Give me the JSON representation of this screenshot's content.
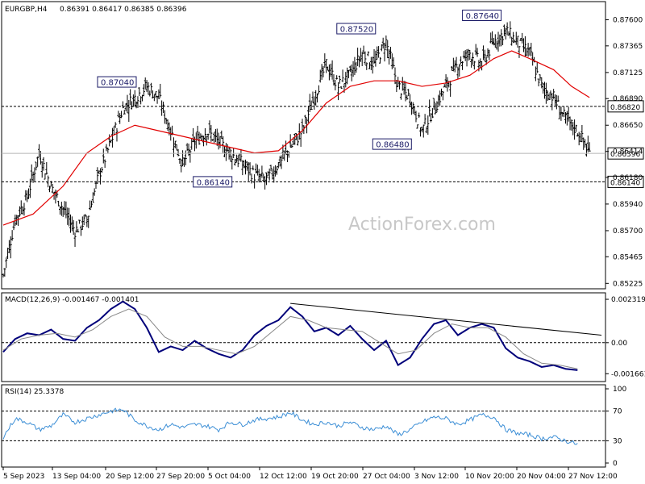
{
  "header": {
    "title": "EURGBP,H4",
    "ohlc": "0.86391 0.86417 0.86385 0.86396"
  },
  "watermark": "ActionForex.com",
  "chart_data": [
    {
      "type": "line",
      "title": "EURGBP,H4",
      "series": [
        {
          "kind": "ohlc-bars",
          "color": "#000000",
          "x_time": [
            "5 Sep 2023",
            "13 Sep 04:00",
            "20 Sep 12:00",
            "27 Sep 20:00",
            "5 Oct 04:00",
            "12 Oct 12:00",
            "19 Oct 20:00",
            "27 Oct 04:00",
            "3 Nov 12:00",
            "10 Nov 20:00",
            "20 Nov 04:00",
            "27 Nov 12:00"
          ],
          "close_path": [
            [
              0,
              0.853
            ],
            [
              4,
              0.858
            ],
            [
              8,
              0.86
            ],
            [
              12,
              0.864
            ],
            [
              16,
              0.861
            ],
            [
              20,
              0.859
            ],
            [
              24,
              0.857
            ],
            [
              28,
              0.858
            ],
            [
              32,
              0.862
            ],
            [
              36,
              0.865
            ],
            [
              40,
              0.868
            ],
            [
              44,
              0.869
            ],
            [
              48,
              0.87
            ],
            [
              52,
              0.869
            ],
            [
              56,
              0.866
            ],
            [
              60,
              0.863
            ],
            [
              64,
              0.865
            ],
            [
              68,
              0.866
            ],
            [
              72,
              0.865
            ],
            [
              76,
              0.864
            ],
            [
              80,
              0.863
            ],
            [
              84,
              0.862
            ],
            [
              88,
              0.8615
            ],
            [
              92,
              0.863
            ],
            [
              96,
              0.8645
            ],
            [
              100,
              0.866
            ],
            [
              104,
              0.869
            ],
            [
              108,
              0.872
            ],
            [
              112,
              0.87
            ],
            [
              116,
              0.871
            ],
            [
              120,
              0.873
            ],
            [
              124,
              0.872
            ],
            [
              128,
              0.874
            ],
            [
              132,
              0.87
            ],
            [
              136,
              0.869
            ],
            [
              140,
              0.866
            ],
            [
              144,
              0.868
            ],
            [
              148,
              0.87
            ],
            [
              152,
              0.872
            ],
            [
              156,
              0.873
            ],
            [
              160,
              0.872
            ],
            [
              164,
              0.874
            ],
            [
              168,
              0.875
            ],
            [
              172,
              0.874
            ],
            [
              176,
              0.873
            ],
            [
              180,
              0.87
            ],
            [
              184,
              0.869
            ],
            [
              188,
              0.867
            ],
            [
              192,
              0.866
            ],
            [
              196,
              0.864
            ]
          ]
        },
        {
          "name": "SMA",
          "color": "#e10000",
          "path": [
            [
              0,
              0.8575
            ],
            [
              10,
              0.8585
            ],
            [
              20,
              0.861
            ],
            [
              28,
              0.864
            ],
            [
              36,
              0.8655
            ],
            [
              44,
              0.8665
            ],
            [
              52,
              0.866
            ],
            [
              60,
              0.8655
            ],
            [
              68,
              0.865
            ],
            [
              76,
              0.8645
            ],
            [
              84,
              0.864
            ],
            [
              92,
              0.8642
            ],
            [
              100,
              0.866
            ],
            [
              108,
              0.8685
            ],
            [
              116,
              0.87
            ],
            [
              124,
              0.8705
            ],
            [
              132,
              0.8705
            ],
            [
              140,
              0.87
            ],
            [
              148,
              0.8703
            ],
            [
              156,
              0.871
            ],
            [
              164,
              0.8725
            ],
            [
              170,
              0.8732
            ],
            [
              176,
              0.8725
            ],
            [
              184,
              0.8715
            ],
            [
              190,
              0.87
            ],
            [
              196,
              0.869
            ]
          ]
        }
      ],
      "ylim": [
        0.8522,
        0.8772
      ],
      "y_ticks": [
        "0.87600",
        "0.87365",
        "0.87125",
        "0.86890",
        "0.86650",
        "0.86414",
        "0.86180",
        "0.85940",
        "0.85700",
        "0.85465",
        "0.85225"
      ],
      "levels": [
        {
          "value": 0.8682,
          "label": "0.86820",
          "style": "dashed"
        },
        {
          "value": 0.86396,
          "label": "0.86396",
          "style": "solid-grey"
        },
        {
          "value": 0.8614,
          "label": "0.86140",
          "style": "dashed"
        }
      ],
      "annotations": [
        {
          "label": "0.87040",
          "x": 38,
          "y": 0.8704
        },
        {
          "label": "0.87520",
          "x": 118,
          "y": 0.8752
        },
        {
          "label": "0.87640",
          "x": 160,
          "y": 0.8764
        },
        {
          "label": "0.86480",
          "x": 130,
          "y": 0.8648
        },
        {
          "label": "0.86140",
          "x": 70,
          "y": 0.8614
        }
      ]
    },
    {
      "type": "line",
      "title": "MACD(12,26,9) -0.001467 -0.001401",
      "series": [
        {
          "name": "MACD main",
          "color": "#00007a",
          "path": [
            [
              0,
              -0.0005
            ],
            [
              4,
              0.0002
            ],
            [
              8,
              0.0005
            ],
            [
              12,
              0.0004
            ],
            [
              16,
              0.0007
            ],
            [
              20,
              0.0002
            ],
            [
              24,
              0.0001
            ],
            [
              28,
              0.0008
            ],
            [
              32,
              0.0012
            ],
            [
              36,
              0.0018
            ],
            [
              40,
              0.0022
            ],
            [
              44,
              0.0018
            ],
            [
              48,
              0.0008
            ],
            [
              52,
              -0.0005
            ],
            [
              56,
              -0.0002
            ],
            [
              60,
              -0.0004
            ],
            [
              64,
              0.0001
            ],
            [
              68,
              -0.0003
            ],
            [
              72,
              -0.0006
            ],
            [
              76,
              -0.0008
            ],
            [
              80,
              -0.0004
            ],
            [
              84,
              0.0004
            ],
            [
              88,
              0.0009
            ],
            [
              92,
              0.0012
            ],
            [
              96,
              0.0019
            ],
            [
              100,
              0.0014
            ],
            [
              104,
              0.0006
            ],
            [
              108,
              0.0008
            ],
            [
              112,
              0.0004
            ],
            [
              116,
              0.0009
            ],
            [
              120,
              0.0002
            ],
            [
              124,
              -0.0004
            ],
            [
              128,
              0.0001
            ],
            [
              132,
              -0.0012
            ],
            [
              136,
              -0.0008
            ],
            [
              140,
              0.0002
            ],
            [
              144,
              0.001
            ],
            [
              148,
              0.0012
            ],
            [
              152,
              0.0004
            ],
            [
              156,
              0.0008
            ],
            [
              160,
              0.001
            ],
            [
              164,
              0.0008
            ],
            [
              168,
              -0.0003
            ],
            [
              172,
              -0.0008
            ],
            [
              176,
              -0.001
            ],
            [
              180,
              -0.0013
            ],
            [
              184,
              -0.0012
            ],
            [
              188,
              -0.0014
            ],
            [
              192,
              -0.00147
            ]
          ]
        },
        {
          "name": "Signal",
          "color": "#888888",
          "path": [
            [
              0,
              -0.0004
            ],
            [
              6,
              0.0002
            ],
            [
              12,
              0.0004
            ],
            [
              18,
              0.0005
            ],
            [
              24,
              0.0003
            ],
            [
              30,
              0.0007
            ],
            [
              36,
              0.0014
            ],
            [
              42,
              0.0018
            ],
            [
              48,
              0.0014
            ],
            [
              54,
              0.0003
            ],
            [
              60,
              -0.0002
            ],
            [
              66,
              -0.0002
            ],
            [
              72,
              -0.0004
            ],
            [
              78,
              -0.0006
            ],
            [
              84,
              -0.0002
            ],
            [
              90,
              0.0006
            ],
            [
              96,
              0.0014
            ],
            [
              102,
              0.0012
            ],
            [
              108,
              0.0008
            ],
            [
              114,
              0.0007
            ],
            [
              120,
              0.0006
            ],
            [
              126,
              0.0
            ],
            [
              132,
              -0.0006
            ],
            [
              138,
              -0.0004
            ],
            [
              144,
              0.0005
            ],
            [
              150,
              0.001
            ],
            [
              156,
              0.0008
            ],
            [
              162,
              0.0008
            ],
            [
              168,
              0.0003
            ],
            [
              174,
              -0.0006
            ],
            [
              180,
              -0.0011
            ],
            [
              186,
              -0.0012
            ],
            [
              192,
              -0.0014
            ]
          ]
        },
        {
          "name": "Trend line",
          "color": "#000000",
          "path": [
            [
              96,
              0.0021
            ],
            [
              200,
              0.0004
            ]
          ]
        }
      ],
      "ylim": [
        -0.00195,
        0.00245
      ],
      "y_ticks": [
        "0.002319",
        "0.00",
        "-0.001661"
      ]
    },
    {
      "type": "line",
      "title": "RSI(14) 25.3378",
      "series": [
        {
          "name": "RSI(14)",
          "color": "#3d8fd6",
          "path": [
            [
              0,
              35
            ],
            [
              4,
              60
            ],
            [
              8,
              55
            ],
            [
              12,
              45
            ],
            [
              16,
              50
            ],
            [
              20,
              65
            ],
            [
              24,
              55
            ],
            [
              28,
              60
            ],
            [
              32,
              65
            ],
            [
              36,
              70
            ],
            [
              40,
              72
            ],
            [
              44,
              58
            ],
            [
              48,
              50
            ],
            [
              52,
              45
            ],
            [
              56,
              52
            ],
            [
              60,
              48
            ],
            [
              64,
              52
            ],
            [
              68,
              50
            ],
            [
              72,
              45
            ],
            [
              76,
              55
            ],
            [
              80,
              52
            ],
            [
              84,
              58
            ],
            [
              88,
              60
            ],
            [
              92,
              62
            ],
            [
              96,
              68
            ],
            [
              100,
              58
            ],
            [
              104,
              52
            ],
            [
              108,
              55
            ],
            [
              112,
              50
            ],
            [
              116,
              55
            ],
            [
              120,
              48
            ],
            [
              124,
              45
            ],
            [
              128,
              50
            ],
            [
              132,
              38
            ],
            [
              136,
              45
            ],
            [
              140,
              55
            ],
            [
              144,
              62
            ],
            [
              148,
              60
            ],
            [
              152,
              52
            ],
            [
              156,
              58
            ],
            [
              160,
              65
            ],
            [
              164,
              62
            ],
            [
              168,
              45
            ],
            [
              172,
              40
            ],
            [
              176,
              38
            ],
            [
              180,
              33
            ],
            [
              184,
              35
            ],
            [
              188,
              30
            ],
            [
              192,
              25.34
            ]
          ]
        }
      ],
      "ylim": [
        0,
        100
      ],
      "y_ticks": [
        "100",
        "70",
        "30",
        "0"
      ],
      "levels": [
        {
          "value": 70,
          "style": "dashed"
        },
        {
          "value": 30,
          "style": "dashed"
        }
      ]
    }
  ]
}
